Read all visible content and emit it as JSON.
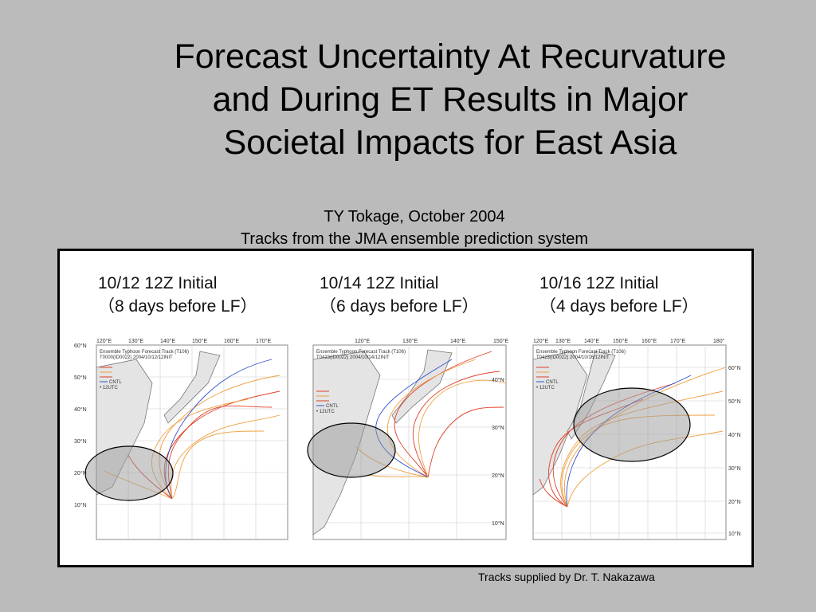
{
  "title": {
    "line1": "Forecast Uncertainty At Recurvature",
    "line2": "and During ET Results in Major",
    "line3": "Societal Impacts for East Asia"
  },
  "caption": {
    "line1": "TY Tokage, October 2004",
    "line2": "Tracks from the JMA ensemble prediction system"
  },
  "panels": [
    {
      "heading": "10/12 12Z Initial",
      "subheading": "（8 days before LF）",
      "lon_labels": [
        "120°E",
        "130°E",
        "140°E",
        "150°E",
        "160°E",
        "170°E"
      ],
      "lat_labels": [
        "60°N",
        "50°N",
        "40°N",
        "30°N",
        "20°N",
        "10°N"
      ],
      "map_title": "Ensemble Typhoon Forecast Track (T106)",
      "map_subtitle": "T0000(ID0022) 2004/10/12/12INIT"
    },
    {
      "heading": "10/14 12Z Initial",
      "subheading": "（6 days before LF）",
      "lon_labels": [
        "120°E",
        "130°E",
        "140°E",
        "150°E"
      ],
      "lat_labels": [
        "40°N",
        "30°N",
        "20°N",
        "10°N"
      ],
      "map_title": "Ensemble Typhoon Forecast Track (T106)",
      "map_subtitle": "T0423(ID0022) 2004/10/14/12INIT"
    },
    {
      "heading": "10/16 12Z Initial",
      "subheading": "（4 days before LF）",
      "lon_labels": [
        "120°E",
        "130°E",
        "140°E",
        "150°E",
        "160°E",
        "170°E",
        "180°"
      ],
      "lat_labels": [
        "60°N",
        "50°N",
        "40°N",
        "30°N",
        "20°N",
        "10°N"
      ],
      "map_title": "Ensemble Typhoon Forecast Track (T106)",
      "map_subtitle": "T0423(ID0022) 2004/10/16/12INIT"
    }
  ],
  "legend": {
    "cntl": "CNTL",
    "marker": "• 12UTC"
  },
  "credit": "Tracks supplied by Dr. T. Nakazawa",
  "colors": {
    "background": "#bbbbbb",
    "track_red": "#e0402a",
    "track_orange": "#f0a040",
    "track_blue": "#3050d0",
    "ellipse_fill": "#9a9a9a",
    "land": "#e4e4e4"
  }
}
